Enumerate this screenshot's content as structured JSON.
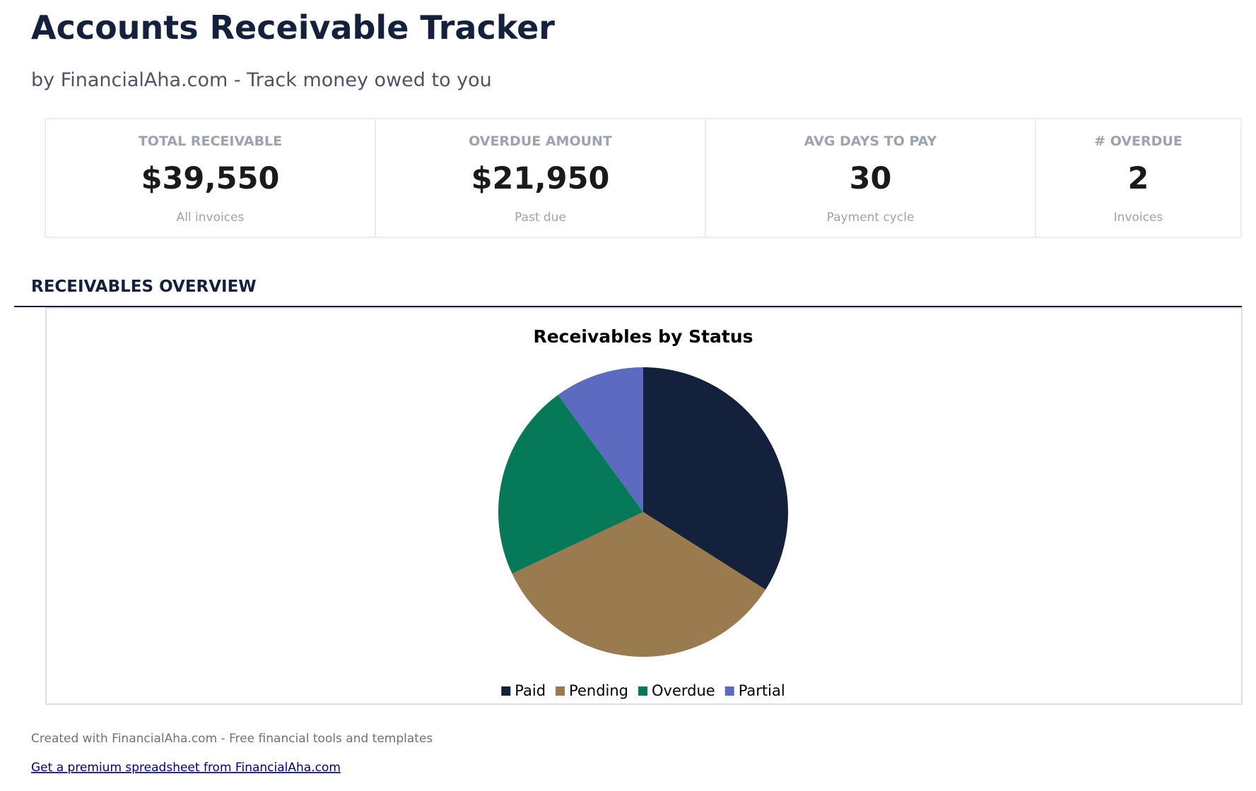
{
  "header": {
    "title": "Accounts Receivable Tracker",
    "subtitle": "by FinancialAha.com - Track money owed to you"
  },
  "kpis": [
    {
      "label": "TOTAL RECEIVABLE",
      "value": "$39,550",
      "note": "All invoices"
    },
    {
      "label": "OVERDUE AMOUNT",
      "value": "$21,950",
      "note": "Past due"
    },
    {
      "label": "AVG DAYS TO PAY",
      "value": "30",
      "note": "Payment cycle"
    },
    {
      "label": "# OVERDUE",
      "value": "2",
      "note": "Invoices"
    }
  ],
  "section": {
    "title": "RECEIVABLES OVERVIEW"
  },
  "chart_data": {
    "type": "pie",
    "title": "Receivables by Status",
    "categories": [
      "Paid",
      "Pending",
      "Overdue",
      "Partial"
    ],
    "values": [
      34,
      34,
      22,
      10
    ],
    "colors": [
      "#14213d",
      "#9a7b4f",
      "#067a58",
      "#5c6bc0"
    ]
  },
  "footer": {
    "text": "Created with FinancialAha.com - Free financial tools and templates",
    "link": "Get a premium spreadsheet from FinancialAha.com"
  }
}
